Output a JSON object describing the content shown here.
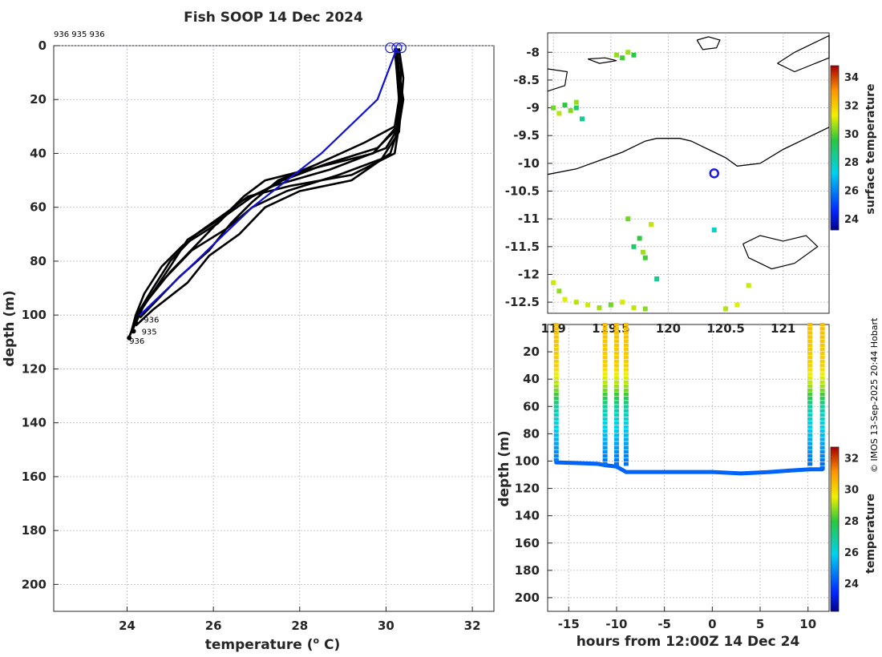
{
  "title": "Fish SOOP 14 Dec 2024",
  "credit": "© IMOS 13-Sep-2025 20:44 Hobart",
  "colors": {
    "profile": "#000000",
    "latest": "#1010d8",
    "marker": "#1a1ae0"
  },
  "chart_data": [
    {
      "type": "line",
      "name": "profile-plot",
      "title": "Fish SOOP 14 Dec 2024",
      "xlabel": "temperature (° C)",
      "xlabel_main": "temperature (",
      "xlabel_sup": "o",
      "xlabel_end": " C)",
      "ylabel": "depth (m)",
      "xlim": [
        22.3,
        32.5
      ],
      "ylim": [
        0,
        210
      ],
      "y_reversed": true,
      "xticks": [
        24,
        26,
        28,
        30,
        32
      ],
      "yticks": [
        0,
        20,
        40,
        60,
        80,
        100,
        120,
        140,
        160,
        180,
        200
      ],
      "grid": true,
      "header_ids": "936 935 936",
      "bottom_labels": [
        "936",
        "935",
        "936"
      ],
      "series": [
        {
          "name": "cast-1",
          "depth": [
            1,
            10,
            20,
            30,
            40,
            48,
            52,
            56,
            62,
            70,
            80,
            90,
            98,
            103
          ],
          "temp": [
            30.25,
            30.3,
            30.35,
            30.3,
            30.2,
            29.2,
            27.8,
            26.8,
            26.3,
            25.6,
            25.0,
            24.6,
            24.3,
            24.15
          ]
        },
        {
          "name": "cast-2",
          "depth": [
            1,
            10,
            20,
            30,
            38,
            46,
            52,
            58,
            66,
            74,
            82,
            92,
            100,
            106
          ],
          "temp": [
            30.2,
            30.25,
            30.3,
            30.3,
            30.0,
            28.7,
            27.4,
            26.6,
            26.1,
            25.3,
            24.8,
            24.4,
            24.2,
            24.1
          ]
        },
        {
          "name": "cast-3",
          "depth": [
            1,
            12,
            22,
            32,
            42,
            48,
            54,
            60,
            68,
            76,
            86,
            96,
            102,
            108
          ],
          "temp": [
            30.3,
            30.4,
            30.35,
            30.3,
            29.9,
            28.9,
            27.7,
            26.9,
            26.3,
            25.5,
            24.9,
            24.4,
            24.2,
            24.05
          ]
        },
        {
          "name": "cast-4",
          "depth": [
            1,
            10,
            20,
            30,
            40,
            46,
            50,
            56,
            64,
            72,
            82,
            94,
            100,
            104
          ],
          "temp": [
            30.22,
            30.28,
            30.32,
            30.25,
            29.7,
            28.2,
            27.2,
            26.7,
            26.2,
            25.4,
            25.0,
            24.5,
            24.25,
            24.15
          ]
        },
        {
          "name": "cast-5",
          "depth": [
            1,
            10,
            20,
            30,
            36,
            44,
            50,
            58,
            66,
            76,
            86,
            96,
            101
          ],
          "temp": [
            30.3,
            30.35,
            30.3,
            30.2,
            29.5,
            28.4,
            27.5,
            26.9,
            26.4,
            25.9,
            25.2,
            24.6,
            24.3
          ]
        },
        {
          "name": "cast-6",
          "depth": [
            1,
            10,
            20,
            30,
            40,
            50,
            54,
            60,
            70,
            78,
            88,
            98,
            104
          ],
          "temp": [
            30.25,
            30.3,
            30.3,
            30.3,
            30.1,
            29.2,
            28.0,
            27.2,
            26.6,
            25.9,
            25.4,
            24.6,
            24.2
          ]
        },
        {
          "name": "cast-7",
          "depth": [
            1,
            10,
            20,
            30,
            38,
            44,
            50,
            56,
            64,
            74,
            84,
            96,
            103,
            108
          ],
          "temp": [
            30.2,
            30.3,
            30.4,
            30.3,
            29.8,
            28.6,
            27.6,
            26.9,
            26.2,
            25.6,
            25.0,
            24.4,
            24.2,
            24.05
          ]
        }
      ],
      "latest": {
        "name": "latest-cast",
        "depth": [
          1,
          20,
          40,
          60,
          80,
          100
        ],
        "temp": [
          30.25,
          29.8,
          28.5,
          26.9,
          25.6,
          24.3
        ]
      },
      "surface_markers": [
        30.1,
        30.25,
        30.35
      ]
    },
    {
      "type": "heatmap",
      "name": "map-plot",
      "xlabel": "",
      "ylabel": "",
      "xlim": [
        118.95,
        121.4
      ],
      "ylim": [
        -12.7,
        -7.65
      ],
      "xticks": [
        119,
        119.5,
        120,
        120.5,
        121
      ],
      "xtick_labels": [
        "119",
        "119.5",
        "120",
        "120.5",
        "121"
      ],
      "yticks": [
        -8,
        -8.5,
        -9,
        -9.5,
        -10,
        -10.5,
        -11,
        -11.5,
        -12,
        -12.5
      ],
      "ytick_labels": [
        "-8",
        "-8.5",
        "-9",
        "-9.5",
        "-10",
        "-10.5",
        "-11",
        "-11.5",
        "-12",
        "-12.5"
      ],
      "colorbar_label": "surface temperature",
      "colorbar_range": [
        23.2,
        34.8
      ],
      "colorbar_ticks": [
        24,
        26,
        28,
        30,
        32,
        34
      ],
      "position_marker": {
        "lon": 120.4,
        "lat": -10.18
      },
      "contour_coast": {
        "lon": [
          118.95,
          119.2,
          119.4,
          119.6,
          119.8,
          119.9,
          120.1,
          120.2,
          120.3,
          120.5,
          120.6,
          120.8,
          121,
          121.2,
          121.4
        ],
        "lat": [
          -10.2,
          -10.1,
          -9.95,
          -9.8,
          -9.6,
          -9.55,
          -9.55,
          -9.6,
          -9.7,
          -9.9,
          -10.05,
          -10.0,
          -9.75,
          -9.55,
          -9.35
        ]
      }
    },
    {
      "type": "scatter",
      "name": "timeseries-plot",
      "xlabel": "hours from 12:00Z 14 Dec 24",
      "ylabel": "depth (m)",
      "xlim": [
        -17.2,
        12.2
      ],
      "ylim": [
        0,
        210
      ],
      "y_reversed": true,
      "xticks": [
        -15,
        -10,
        -5,
        0,
        5,
        10
      ],
      "xtick_labels": [
        "-15",
        "-10",
        "-5",
        "0",
        "5",
        "10"
      ],
      "yticks": [
        20,
        40,
        60,
        80,
        100,
        120,
        140,
        160,
        180,
        200
      ],
      "colorbar_label": "temperature",
      "colorbar_range": [
        22.2,
        32.7
      ],
      "colorbar_ticks": [
        24,
        26,
        28,
        30,
        32
      ],
      "casts": [
        {
          "hour": -16.3,
          "bottom": 101
        },
        {
          "hour": -11.2,
          "bottom": 102
        },
        {
          "hour": -10.0,
          "bottom": 103
        },
        {
          "hour": -9.0,
          "bottom": 104
        },
        {
          "hour": 10.2,
          "bottom": 102
        },
        {
          "hour": 11.5,
          "bottom": 106
        }
      ],
      "bottom_track": {
        "hours": [
          -16.3,
          -14,
          -12,
          -11.2,
          -10,
          -9,
          -5,
          0,
          3,
          6,
          8,
          10.2,
          11.5
        ],
        "depth": [
          101,
          101.5,
          102,
          103,
          104,
          108,
          108,
          108,
          109,
          108,
          107,
          106,
          106
        ]
      }
    }
  ]
}
